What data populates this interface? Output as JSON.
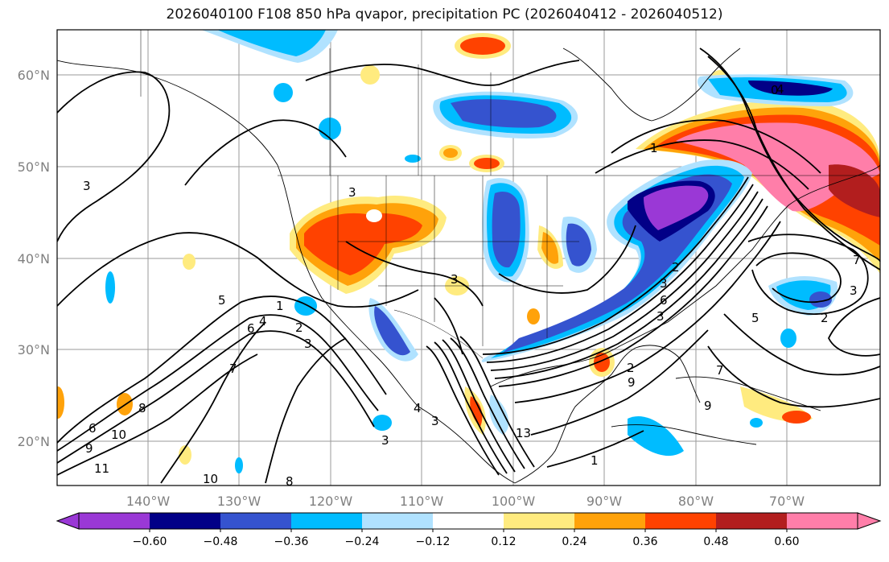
{
  "title": "2026040100 F108 850 hPa qvapor, precipitation PC (2026040412 - 2026040512)",
  "lat_labels": [
    "60°N",
    "50°N",
    "40°N",
    "30°N",
    "20°N"
  ],
  "lon_labels": [
    "140°W",
    "130°W",
    "120°W",
    "110°W",
    "100°W",
    "90°W",
    "80°W",
    "70°W"
  ],
  "contour_labels": [
    "3",
    "5",
    "6",
    "4",
    "1",
    "2",
    "3",
    "7",
    "9",
    "10",
    "11",
    "10",
    "8",
    "6",
    "8",
    "3",
    "4",
    "3",
    "3",
    "13",
    "3",
    "1",
    "2",
    "3",
    "5",
    "7",
    "9",
    "2",
    "6",
    "3",
    "4",
    "0",
    "1",
    "7",
    "2",
    "9",
    "3"
  ],
  "colorbar": {
    "colors": [
      "#9a38d6",
      "#020087",
      "#3553cf",
      "#00bcff",
      "#b0e2ff",
      "#ffffff",
      "#ffeb7f",
      "#ffa20a",
      "#ff4200",
      "#b21e1e",
      "#ff7ea9"
    ],
    "tick_labels": [
      "−0.60",
      "−0.48",
      "−0.36",
      "−0.24",
      "−0.12",
      "0.12",
      "0.24",
      "0.36",
      "0.48",
      "0.60"
    ]
  }
}
